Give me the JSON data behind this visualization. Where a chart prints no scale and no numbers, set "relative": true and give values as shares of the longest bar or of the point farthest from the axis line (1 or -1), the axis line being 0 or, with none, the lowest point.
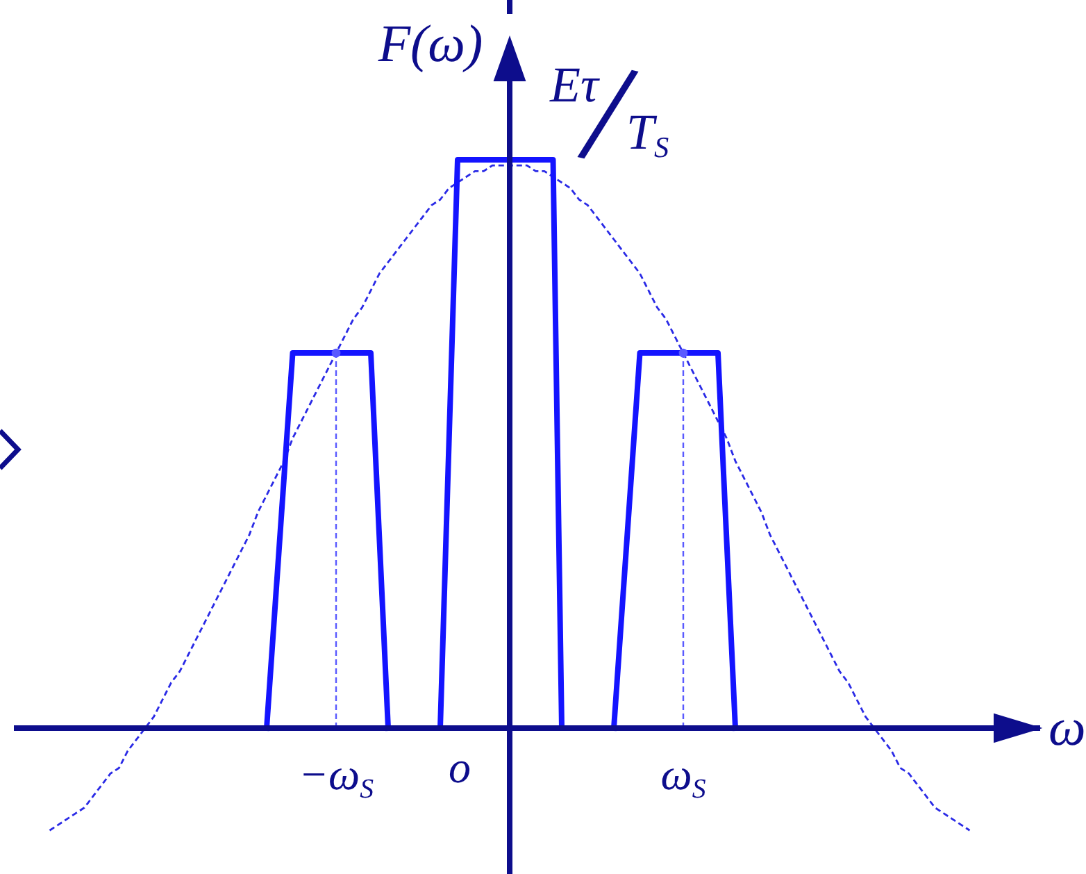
{
  "chart_data": {
    "type": "line",
    "xlabel": "ω",
    "ylabel": "F(ω)",
    "relative": true,
    "categories": [
      null,
      null,
      null,
      null,
      null,
      null,
      null,
      null,
      null,
      null,
      null,
      null,
      null,
      null,
      null,
      null,
      null,
      null,
      null,
      null,
      null,
      null,
      null,
      null,
      null,
      null,
      null,
      null,
      null,
      null,
      null,
      null,
      null,
      null,
      null,
      null,
      null,
      "−ω$_{S}$",
      null,
      null,
      null,
      null,
      null,
      null,
      null,
      null,
      null,
      null,
      null,
      null,
      null,
      null,
      null,
      null,
      null,
      null,
      null,
      null,
      null,
      null,
      null,
      null,
      null,
      null,
      null,
      null,
      null,
      null,
      null,
      null,
      null,
      null,
      null,
      null,
      null,
      null,
      null,
      "ω$_{S}$",
      null,
      null,
      null,
      null,
      null,
      null,
      null,
      null,
      null,
      null,
      null,
      null,
      null,
      null,
      null,
      null,
      null,
      null,
      null,
      null,
      null,
      null,
      null,
      null,
      null,
      null,
      null,
      null,
      null,
      null,
      null,
      null,
      null,
      null,
      null,
      null,
      null
    ],
    "annotations": [
      "Eτ/T$_{S}$",
      "o"
    ],
    "series": [
      {
        "color": "#2a2ae6",
        "line_style": "dashed",
        "values": [
          null,
          null,
          null,
          null,
          -0.18,
          -0.17,
          -0.16,
          -0.15,
          -0.14,
          -0.12,
          -0.1,
          -0.08,
          -0.07,
          -0.04,
          -0.02,
          0,
          0.02,
          0.05,
          0.08,
          0.1,
          0.13,
          0.16,
          0.19,
          0.22,
          0.25,
          0.28,
          0.31,
          0.34,
          0.38,
          0.41,
          0.44,
          0.47,
          0.51,
          0.54,
          0.57,
          0.6,
          0.63,
          0.66,
          0.69,
          0.72,
          0.74,
          0.77,
          0.8,
          0.82,
          0.84,
          0.86,
          0.88,
          0.9,
          0.92,
          0.93,
          0.95,
          0.96,
          0.97,
          0.98,
          0.98,
          0.99,
          0.99,
          0.99,
          0.99,
          0.99,
          0.98,
          0.98,
          0.97,
          0.96,
          0.95,
          0.93,
          0.92,
          0.9,
          0.88,
          0.86,
          0.84,
          0.82,
          0.8,
          0.77,
          0.74,
          0.72,
          0.69,
          0.66,
          0.63,
          0.6,
          0.57,
          0.54,
          0.51,
          0.47,
          0.44,
          0.41,
          0.38,
          0.34,
          0.31,
          0.28,
          0.25,
          0.22,
          0.19,
          0.16,
          0.13,
          0.1,
          0.08,
          0.05,
          0.02,
          0,
          -0.02,
          -0.04,
          -0.07,
          -0.08,
          -0.1,
          -0.12,
          -0.14,
          -0.15,
          -0.16,
          -0.17,
          -0.18,
          null,
          null,
          null,
          null
        ]
      },
      {
        "color": "#1414ff",
        "line_style": "solid",
        "values": [
          null,
          null,
          null,
          null,
          null,
          null,
          null,
          null,
          null,
          null,
          null,
          null,
          null,
          null,
          null,
          null,
          null,
          null,
          null,
          null,
          null,
          null,
          null,
          null,
          null,
          null,
          null,
          null,
          null,
          0,
          0.22,
          0.44,
          0.66,
          0.66,
          0.66,
          0.66,
          0.66,
          0.66,
          0.66,
          0.66,
          0.66,
          0.66,
          0.33,
          0,
          null,
          null,
          null,
          null,
          null,
          null,
          null,
          null,
          null,
          null,
          null,
          null,
          null,
          null,
          null,
          null,
          null,
          null,
          null,
          null,
          null,
          null,
          null,
          null,
          null,
          null,
          null,
          null,
          null,
          null,
          null,
          null,
          null,
          null,
          null,
          null,
          null,
          null,
          null,
          null,
          null,
          null,
          null,
          null,
          null,
          null,
          null,
          null,
          null,
          null,
          null,
          null,
          null,
          null,
          null,
          null,
          null,
          null,
          null,
          null,
          null,
          null,
          null,
          null,
          null,
          null,
          null,
          null,
          null,
          null,
          null
        ]
      },
      {
        "color": "#1414ff",
        "line_style": "solid",
        "values": [
          null,
          null,
          null,
          null,
          null,
          null,
          null,
          null,
          null,
          null,
          null,
          null,
          null,
          null,
          null,
          null,
          null,
          null,
          null,
          null,
          null,
          null,
          null,
          null,
          null,
          null,
          null,
          null,
          null,
          null,
          null,
          null,
          null,
          null,
          null,
          null,
          null,
          null,
          null,
          null,
          null,
          null,
          null,
          null,
          null,
          null,
          null,
          null,
          null,
          0,
          0.5,
          1,
          1,
          1,
          1,
          1,
          1,
          1,
          1,
          1,
          1,
          1,
          1,
          0,
          null,
          null,
          null,
          null,
          null,
          null,
          null,
          null,
          null,
          null,
          null,
          null,
          null,
          null,
          null,
          null,
          null,
          null,
          null,
          null,
          null,
          null,
          null,
          null,
          null,
          null,
          null,
          null,
          null,
          null,
          null,
          null,
          null,
          null,
          null,
          null,
          null,
          null,
          null,
          null,
          null,
          null,
          null,
          null,
          null,
          null,
          null,
          null,
          null,
          null,
          null
        ]
      },
      {
        "color": "#1414ff",
        "line_style": "solid",
        "values": [
          null,
          null,
          null,
          null,
          null,
          null,
          null,
          null,
          null,
          null,
          null,
          null,
          null,
          null,
          null,
          null,
          null,
          null,
          null,
          null,
          null,
          null,
          null,
          null,
          null,
          null,
          null,
          null,
          null,
          null,
          null,
          null,
          null,
          null,
          null,
          null,
          null,
          null,
          null,
          null,
          null,
          null,
          null,
          null,
          null,
          null,
          null,
          null,
          null,
          null,
          null,
          null,
          null,
          null,
          null,
          null,
          null,
          null,
          null,
          null,
          null,
          null,
          null,
          null,
          null,
          null,
          null,
          null,
          null,
          0,
          0.22,
          0.44,
          0.66,
          0.66,
          0.66,
          0.66,
          0.66,
          0.66,
          0.66,
          0.66,
          0.66,
          0.66,
          0.33,
          0,
          null,
          null,
          null,
          null,
          null,
          null,
          null,
          null,
          null,
          null,
          null,
          null,
          null,
          null,
          null,
          null,
          null,
          null,
          null,
          null,
          null,
          null,
          null,
          null,
          null,
          null,
          null,
          null,
          null,
          null,
          null
        ]
      },
      {
        "type": "lollipop",
        "marker": "circle",
        "color": "#5a5aff",
        "line_style": "dashed",
        "values": [
          null,
          null,
          null,
          null,
          null,
          null,
          null,
          null,
          null,
          null,
          null,
          null,
          null,
          null,
          null,
          null,
          null,
          null,
          null,
          null,
          null,
          null,
          null,
          null,
          null,
          null,
          null,
          null,
          null,
          null,
          null,
          null,
          null,
          null,
          null,
          null,
          null,
          0.66,
          null,
          null,
          null,
          null,
          null,
          null,
          null,
          null,
          null,
          null,
          null,
          null,
          null,
          null,
          null,
          null,
          null,
          null,
          null,
          null,
          null,
          null,
          null,
          null,
          null,
          null,
          null,
          null,
          null,
          null,
          null,
          null,
          null,
          null,
          null,
          null,
          null,
          null,
          null,
          0.66,
          null,
          null,
          null,
          null,
          null,
          null,
          null,
          null,
          null,
          null,
          null,
          null,
          null,
          null,
          null,
          null,
          null,
          null,
          null,
          null,
          null,
          null,
          null,
          null,
          null,
          null,
          null,
          null,
          null,
          null,
          null,
          null,
          null,
          null,
          null,
          null,
          null
        ]
      }
    ]
  }
}
